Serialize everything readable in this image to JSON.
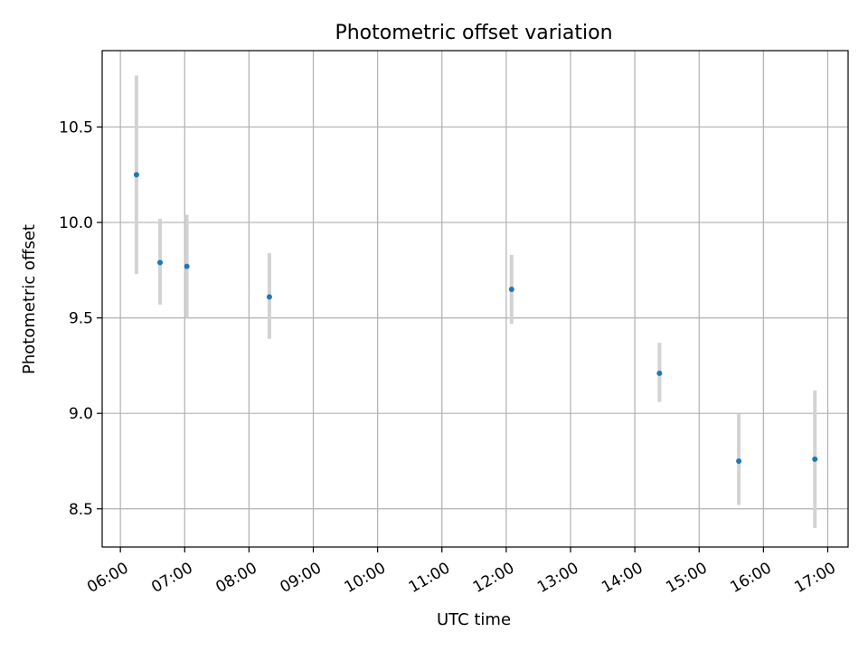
{
  "chart_data": {
    "type": "scatter",
    "title": "Photometric offset variation",
    "xlabel": "UTC time",
    "ylabel": "Photometric offset",
    "x_ticks": [
      "06:00",
      "07:00",
      "08:00",
      "09:00",
      "10:00",
      "11:00",
      "12:00",
      "13:00",
      "14:00",
      "15:00",
      "16:00",
      "17:00"
    ],
    "y_ticks": [
      "8.5",
      "9.0",
      "9.5",
      "10.0",
      "10.5"
    ],
    "xlim": [
      "05:43",
      "17:19"
    ],
    "ylim": [
      8.3,
      10.9
    ],
    "grid": true,
    "points": [
      {
        "x": "06:15",
        "y": 10.25,
        "yerr_low": 9.73,
        "yerr_high": 10.77
      },
      {
        "x": "06:37",
        "y": 9.79,
        "yerr_low": 9.57,
        "yerr_high": 10.02
      },
      {
        "x": "07:02",
        "y": 9.77,
        "yerr_low": 9.5,
        "yerr_high": 10.04
      },
      {
        "x": "08:19",
        "y": 9.61,
        "yerr_low": 9.39,
        "yerr_high": 9.84
      },
      {
        "x": "12:05",
        "y": 9.65,
        "yerr_low": 9.47,
        "yerr_high": 9.83
      },
      {
        "x": "14:23",
        "y": 9.21,
        "yerr_low": 9.06,
        "yerr_high": 9.37
      },
      {
        "x": "15:37",
        "y": 8.75,
        "yerr_low": 8.52,
        "yerr_high": 9.0
      },
      {
        "x": "16:48",
        "y": 8.76,
        "yerr_low": 8.4,
        "yerr_high": 9.12
      }
    ],
    "colors": {
      "point": "#1f77b4",
      "errorbar": "#d3d3d3",
      "grid": "#b0b0b0"
    }
  }
}
